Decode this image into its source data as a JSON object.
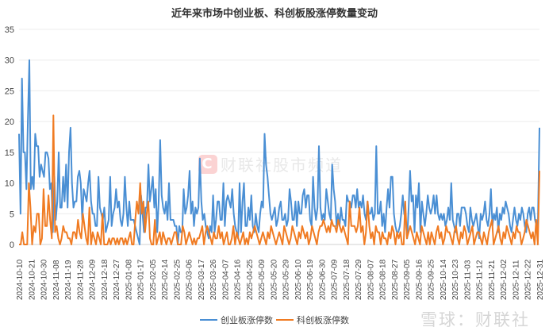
{
  "chart_data": {
    "type": "line",
    "title": "近年来市场中创业板、科创板股涨停数量变动",
    "xlabel": "",
    "ylabel": "",
    "ylim": [
      0,
      35
    ],
    "yticks": [
      0,
      5,
      10,
      15,
      20,
      25,
      30,
      35
    ],
    "grid": true,
    "legend_position": "bottom",
    "x_tick_labels": [
      "2024-10-10",
      "2024-10-21",
      "2024-10-30",
      "2024-11-08",
      "2024-11-19",
      "2024-11-28",
      "2024-12-09",
      "2024-12-18",
      "2024-12-27",
      "2025-01-08",
      "2025-01-17",
      "2025-02-05",
      "2025-02-14",
      "2025-02-25",
      "2025-03-06",
      "2025-03-17",
      "2025-03-26",
      "2025-04-07",
      "2025-04-16",
      "2025-04-25",
      "2025-05-09",
      "2025-05-20",
      "2025-05-29",
      "2025-06-10",
      "2025-06-19",
      "2025-06-30",
      "2025-07-09",
      "2025-07-18",
      "2025-07-29",
      "2025-08-07",
      "2025-08-18",
      "2025-08-27",
      "2025-09-05",
      "2025-09-16",
      "2025-09-25",
      "2025-10-14",
      "2025-10-23",
      "2025-11-03",
      "2025-11-12",
      "2025-11-21",
      "2025-12-02",
      "2025-12-11",
      "2025-12-22",
      "2025-12-31"
    ],
    "series": [
      {
        "name": "创业板涨停数",
        "color": "#4a8fd4",
        "values": [
          18,
          5,
          27,
          15,
          15,
          9,
          20,
          30,
          9,
          11,
          9,
          18,
          16,
          16,
          11,
          13,
          12,
          11,
          15,
          15,
          14,
          9,
          10,
          2,
          11,
          4,
          7,
          15,
          6,
          6,
          11,
          7,
          13,
          6,
          15,
          19,
          10,
          6,
          7,
          7,
          11,
          12,
          10,
          4,
          9,
          8,
          7,
          10,
          12,
          7,
          5,
          5,
          3,
          3,
          11,
          6,
          5,
          4,
          6,
          2,
          3,
          4,
          11,
          3,
          5,
          6,
          9,
          6,
          7,
          4,
          3,
          5,
          11,
          6,
          3,
          7,
          4,
          4,
          4,
          3,
          2,
          1,
          0,
          8,
          5,
          2,
          6,
          6,
          13,
          7,
          9,
          11,
          6,
          9,
          2,
          7,
          17,
          8,
          6,
          5,
          7,
          4,
          10,
          4,
          4,
          4,
          3,
          3,
          0,
          3,
          2,
          2,
          9,
          5,
          6,
          8,
          12,
          5,
          7,
          3,
          6,
          5,
          6,
          14,
          7,
          4,
          5,
          3,
          2,
          1,
          3,
          2,
          8,
          2,
          4,
          7,
          7,
          4,
          4,
          10,
          3,
          7,
          8,
          7,
          6,
          9,
          5,
          3,
          2,
          1,
          10,
          2,
          7,
          10,
          3,
          3,
          6,
          4,
          8,
          3,
          2,
          5,
          3,
          2,
          5,
          7,
          6,
          18,
          13,
          11,
          8,
          5,
          4,
          5,
          6,
          3,
          4,
          6,
          7,
          4,
          4,
          5,
          3,
          4,
          9,
          7,
          4,
          4,
          7,
          3,
          7,
          5,
          5,
          8,
          9,
          6,
          8,
          8,
          4,
          3,
          11,
          6,
          4,
          6,
          16,
          6,
          4,
          5,
          4,
          9,
          7,
          5,
          4,
          13,
          9,
          7,
          3,
          5,
          3,
          6,
          4,
          4,
          3,
          8,
          7,
          7,
          6,
          8,
          8,
          6,
          9,
          6,
          7,
          6,
          8,
          5,
          4,
          7,
          5,
          5,
          6,
          4,
          5,
          16,
          5,
          5,
          7,
          3,
          5,
          2,
          6,
          9,
          6,
          11,
          11,
          5,
          3,
          2,
          2,
          3,
          5,
          8,
          5,
          4,
          1,
          6,
          12,
          7,
          8,
          2,
          8,
          6,
          10,
          2,
          7,
          5,
          3,
          5,
          8,
          6,
          5,
          6,
          8,
          5,
          8,
          5,
          4,
          5,
          4,
          5,
          3,
          4,
          6,
          4,
          10,
          4,
          3,
          2,
          5,
          5,
          3,
          6,
          6,
          6,
          5,
          3,
          2,
          6,
          4,
          3,
          4,
          5,
          3,
          1,
          5,
          4,
          5,
          7,
          4,
          3,
          5,
          9,
          3,
          5,
          4,
          6,
          2,
          5,
          4,
          6,
          5,
          7,
          6,
          5,
          3,
          2,
          4,
          6,
          4,
          3,
          5,
          4,
          6,
          5,
          3,
          2,
          5,
          6,
          4,
          6,
          6,
          4,
          3,
          4,
          19
        ]
      },
      {
        "name": "科创板涨停数",
        "color": "#f07b22",
        "values": [
          0,
          0,
          2,
          0,
          0,
          0,
          10,
          6,
          0,
          3,
          2,
          5,
          5,
          0,
          1,
          9,
          3,
          3,
          8,
          4,
          1,
          21,
          2,
          3,
          1,
          0,
          1,
          3,
          2,
          2,
          1,
          1,
          0,
          2,
          2,
          1,
          4,
          2,
          1,
          5,
          3,
          1,
          0,
          6,
          0,
          2,
          1,
          0,
          2,
          1,
          0,
          5,
          0,
          0,
          0,
          1,
          0,
          1,
          1,
          0,
          1,
          0,
          1,
          1,
          0,
          1,
          0,
          1,
          2,
          0,
          0,
          4,
          7,
          5,
          10,
          5,
          7,
          2,
          5,
          7,
          1,
          0,
          0,
          4,
          0,
          1,
          2,
          0,
          2,
          1,
          0,
          1,
          1,
          0,
          1,
          2,
          2,
          0,
          0,
          0,
          3,
          2,
          0,
          1,
          2,
          1,
          0,
          1,
          0,
          1,
          1,
          2,
          3,
          0,
          2,
          3,
          2,
          1,
          0,
          2,
          1,
          1,
          3,
          1,
          2,
          0,
          1,
          2,
          0,
          0,
          1,
          3,
          0,
          2,
          1,
          0,
          1,
          2,
          0,
          1,
          0,
          2,
          1,
          2,
          3,
          2,
          1,
          0,
          1,
          2,
          1,
          0,
          2,
          1,
          3,
          2,
          1,
          0,
          1,
          2,
          1,
          0,
          3,
          2,
          1,
          0,
          1,
          3,
          2,
          1,
          0,
          2,
          1,
          3,
          2,
          1,
          2,
          0,
          1,
          3,
          2,
          1,
          0,
          2,
          3,
          3,
          4,
          3,
          2,
          3,
          2,
          4,
          3,
          3,
          2,
          4,
          3,
          2,
          3,
          2,
          1,
          0,
          7,
          3,
          3,
          3,
          2,
          3,
          6,
          2,
          3,
          0,
          2,
          7,
          3,
          1,
          2,
          0,
          3,
          2,
          2,
          0,
          2,
          1,
          1,
          0,
          2,
          1,
          3,
          2,
          0,
          2,
          1,
          2,
          0,
          0,
          7,
          1,
          2,
          3,
          2,
          1,
          0,
          2,
          1,
          0,
          3,
          2,
          1,
          0,
          2,
          0,
          2,
          1,
          0,
          2,
          3,
          1,
          2,
          0,
          1,
          3,
          2,
          2,
          1,
          0,
          2,
          3,
          1,
          0,
          2,
          1,
          3,
          2,
          0,
          1,
          2,
          3,
          0,
          1,
          2,
          2,
          1,
          0,
          2,
          1,
          0,
          2,
          3,
          4,
          0,
          1,
          2,
          3,
          1,
          0,
          2,
          1,
          3,
          2,
          1,
          0,
          2,
          1,
          3,
          2,
          2,
          0,
          1,
          2,
          4,
          3,
          2,
          1,
          2,
          0,
          4,
          0,
          12
        ]
      }
    ]
  },
  "legend": {
    "items": [
      {
        "label": "创业板涨停数",
        "color": "#4a8fd4"
      },
      {
        "label": "科创板涨停数",
        "color": "#f07b22"
      }
    ]
  },
  "watermarks": {
    "center": "财联社股市频道",
    "center_logo": "C",
    "bottom_right": "雪球：财联社"
  }
}
